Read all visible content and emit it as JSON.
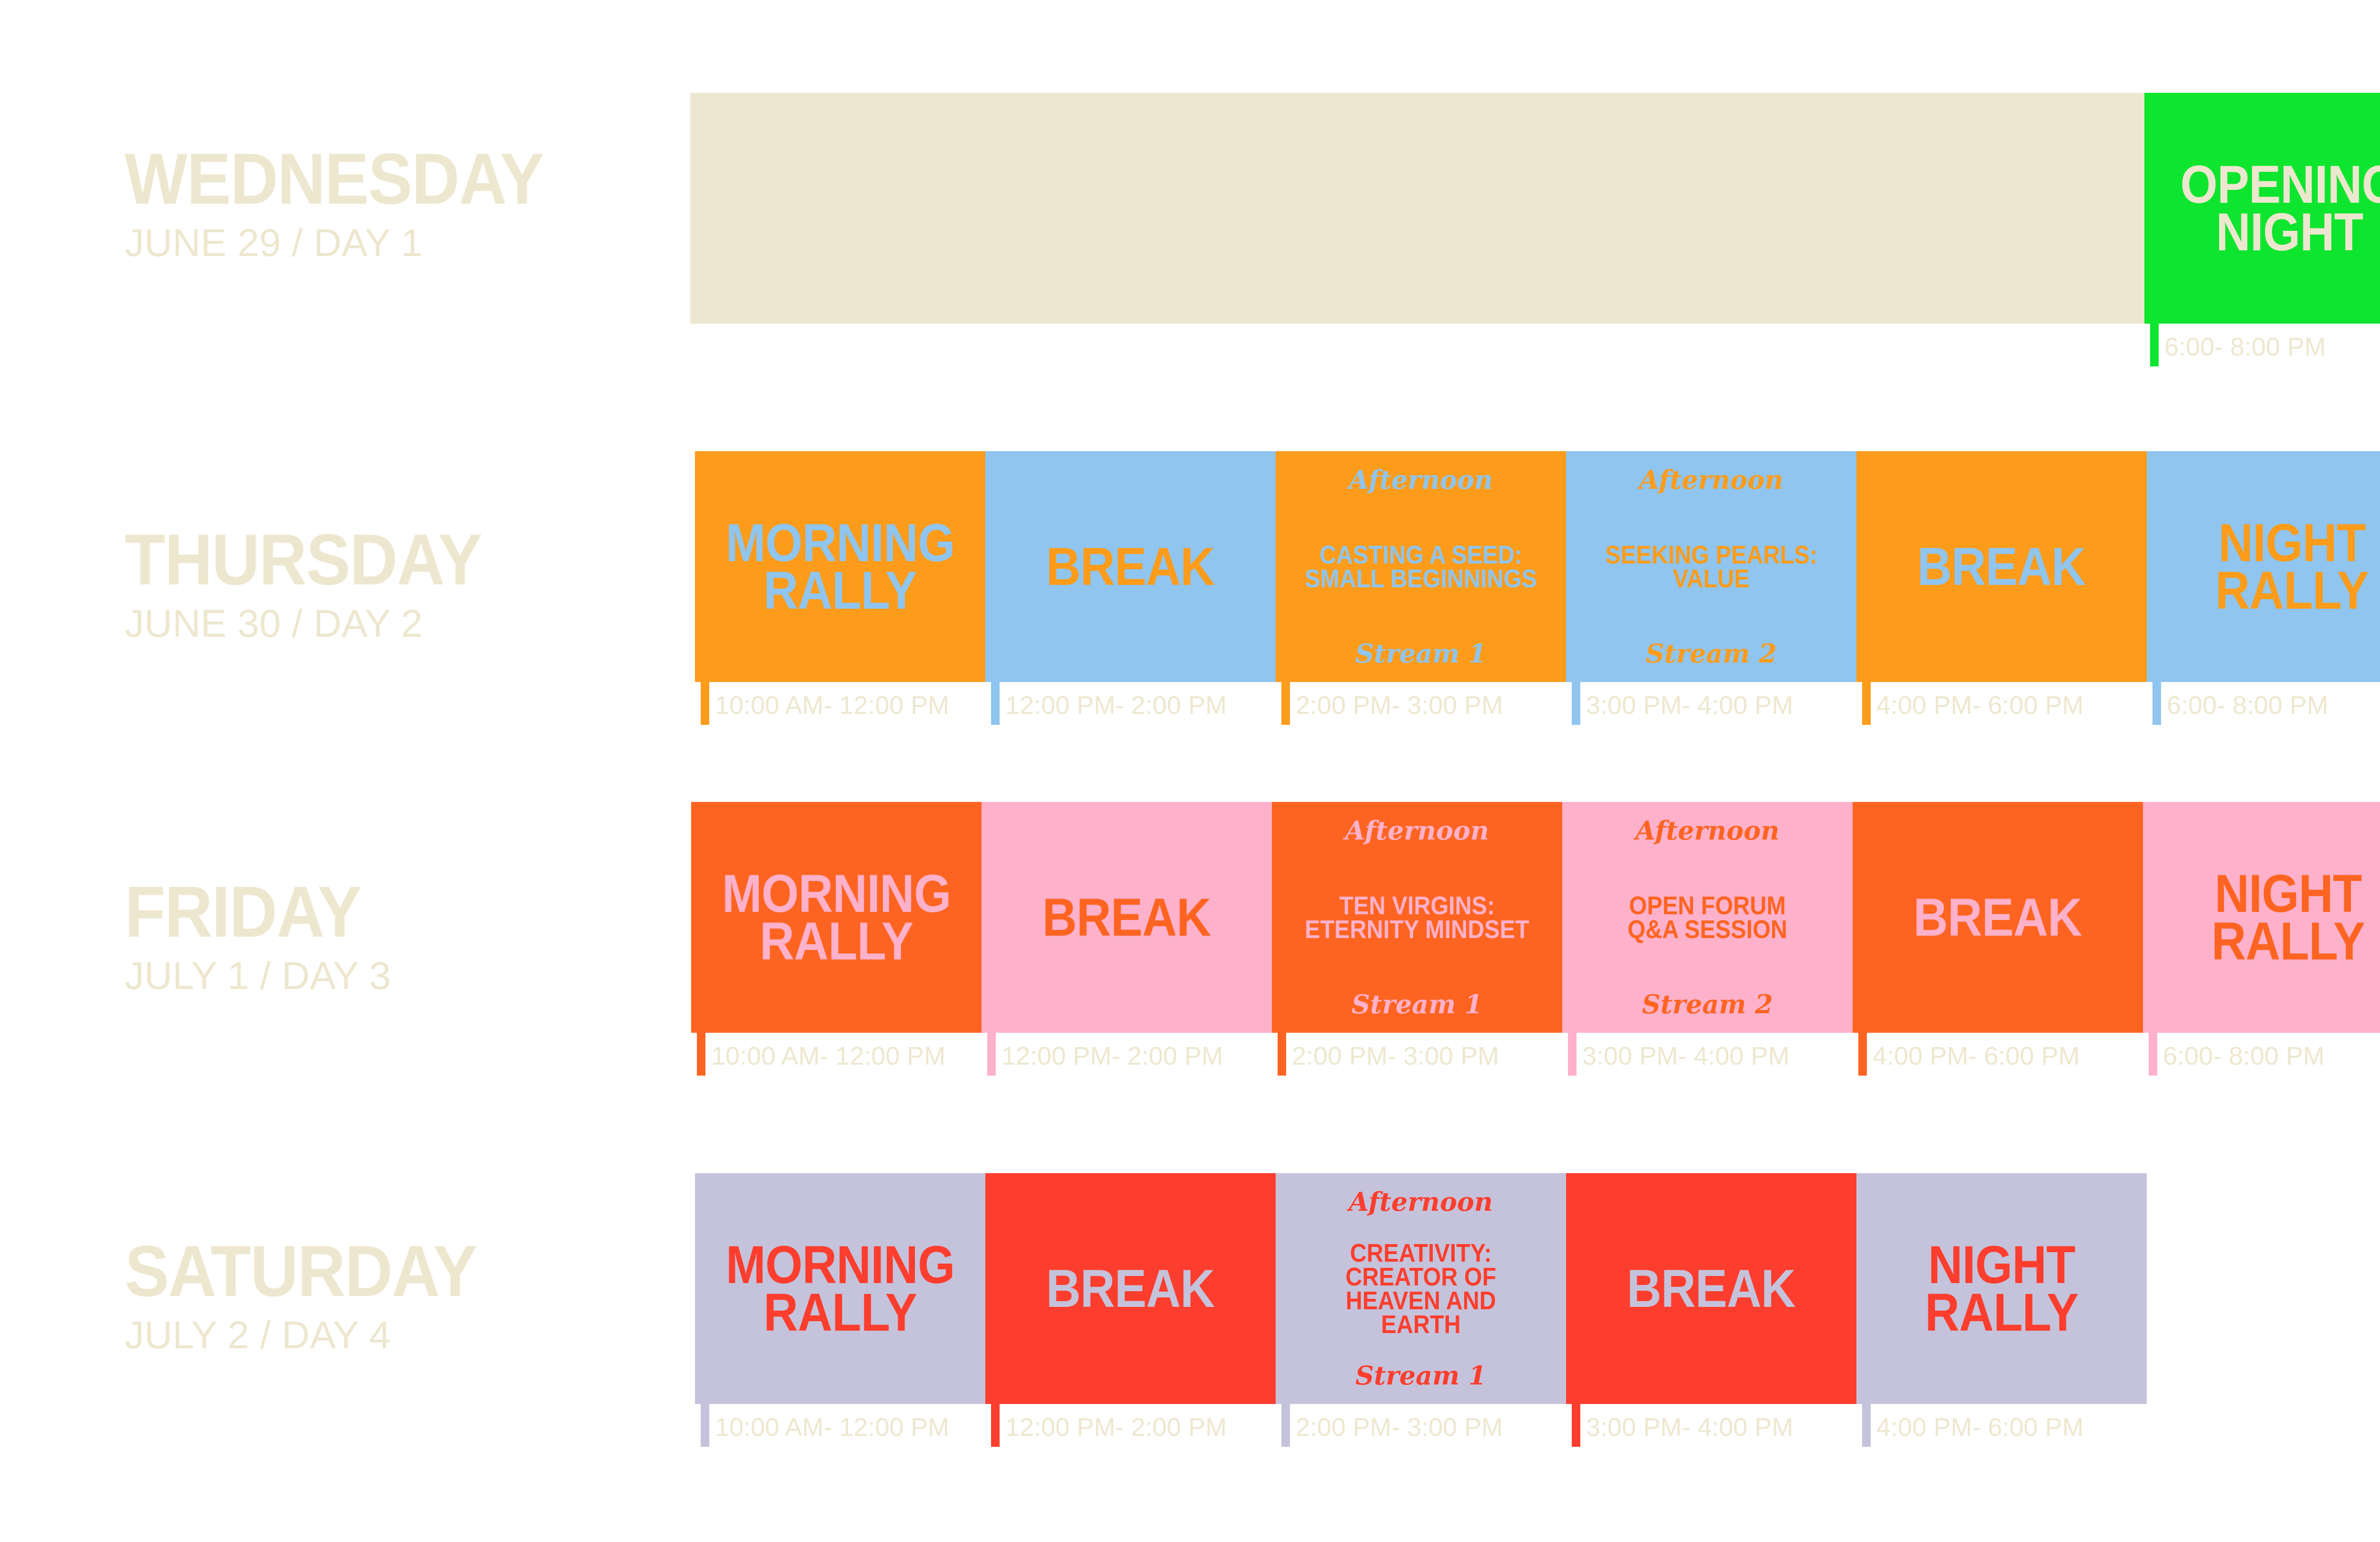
{
  "colors": {
    "label": "#eee7cf",
    "time_text": "#eee7cf",
    "cream": "#eee7cf",
    "green": "#0de52e",
    "orange": "#fd9c1b",
    "sky": "#8fc5ef",
    "deep_orange": "#fe6421",
    "pink": "#fdb1ca",
    "lavender": "#c5c3db",
    "red": "#fd3e2e"
  },
  "days": [
    {
      "name": "WEDNESDAY",
      "subtitle": "JUNE 29 / DAY 1",
      "blocks": [
        {
          "kind": "empty",
          "bg": "#eee7cf",
          "time": ""
        },
        {
          "kind": "big",
          "title": "OPENING\nNIGHT",
          "bg": "#0de52e",
          "fg": "#eee7cf",
          "time": "6:00- 8:00 PM",
          "mark": "#0de52e"
        }
      ]
    },
    {
      "name": "THURSDAY",
      "subtitle": "JUNE 30 / DAY 2",
      "blocks": [
        {
          "kind": "big",
          "title": "MORNING\nRALLY",
          "bg": "#fd9c1b",
          "fg": "#8fc5ef",
          "time": "10:00 AM- 12:00 PM",
          "mark": "#fd9c1b"
        },
        {
          "kind": "big",
          "title": "BREAK",
          "bg": "#8fc5ef",
          "fg": "#fd9c1b",
          "time": "12:00 PM- 2:00 PM",
          "mark": "#8fc5ef"
        },
        {
          "kind": "session",
          "kicker": "Afternoon",
          "title": "CASTING A SEED:\nSMALL BEGINNINGS",
          "stream": "Stream 1",
          "bg": "#fd9c1b",
          "fg": "#8fc5ef",
          "time": "2:00 PM- 3:00 PM",
          "mark": "#fd9c1b"
        },
        {
          "kind": "session",
          "kicker": "Afternoon",
          "title": "SEEKING PEARLS:\nVALUE",
          "stream": "Stream 2",
          "bg": "#8fc5ef",
          "fg": "#fd9c1b",
          "time": "3:00 PM- 4:00 PM",
          "mark": "#8fc5ef"
        },
        {
          "kind": "big",
          "title": "BREAK",
          "bg": "#fd9c1b",
          "fg": "#8fc5ef",
          "time": "4:00 PM- 6:00 PM",
          "mark": "#fd9c1b"
        },
        {
          "kind": "big",
          "title": "NIGHT\nRALLY",
          "bg": "#8fc5ef",
          "fg": "#fd9c1b",
          "time": "6:00- 8:00 PM",
          "mark": "#8fc5ef"
        }
      ]
    },
    {
      "name": "FRIDAY",
      "subtitle": "JULY 1 / DAY 3",
      "blocks": [
        {
          "kind": "big",
          "title": "MORNING\nRALLY",
          "bg": "#fe6421",
          "fg": "#fdb1ca",
          "time": "10:00 AM- 12:00 PM",
          "mark": "#fe6421"
        },
        {
          "kind": "big",
          "title": "BREAK",
          "bg": "#fdb1ca",
          "fg": "#fe6421",
          "time": "12:00 PM- 2:00 PM",
          "mark": "#fdb1ca"
        },
        {
          "kind": "session",
          "kicker": "Afternoon",
          "title": "TEN VIRGINS:\nETERNITY MINDSET",
          "stream": "Stream 1",
          "bg": "#fe6421",
          "fg": "#fdb1ca",
          "time": "2:00 PM- 3:00 PM",
          "mark": "#fe6421"
        },
        {
          "kind": "session",
          "kicker": "Afternoon",
          "title": "OPEN FORUM\nQ&A SESSION",
          "stream": "Stream 2",
          "bg": "#fdb1ca",
          "fg": "#fe6421",
          "time": "3:00 PM- 4:00 PM",
          "mark": "#fdb1ca"
        },
        {
          "kind": "big",
          "title": "BREAK",
          "bg": "#fe6421",
          "fg": "#fdb1ca",
          "time": "4:00 PM- 6:00 PM",
          "mark": "#fe6421"
        },
        {
          "kind": "big",
          "title": "NIGHT\nRALLY",
          "bg": "#fdb1ca",
          "fg": "#fe6421",
          "time": "6:00- 8:00 PM",
          "mark": "#fdb1ca"
        }
      ]
    },
    {
      "name": "SATURDAY",
      "subtitle": "JULY 2 / DAY 4",
      "blocks": [
        {
          "kind": "big",
          "title": "MORNING\nRALLY",
          "bg": "#c5c3db",
          "fg": "#fd3e2e",
          "time": "10:00 AM- 12:00 PM",
          "mark": "#c5c3db"
        },
        {
          "kind": "big",
          "title": "BREAK",
          "bg": "#fd3e2e",
          "fg": "#c5c3db",
          "time": "12:00 PM- 2:00 PM",
          "mark": "#fd3e2e"
        },
        {
          "kind": "session",
          "kicker": "Afternoon",
          "title": "CREATIVITY:\nCREATOR OF\nHEAVEN AND\nEARTH",
          "stream": "Stream 1",
          "bg": "#c5c3db",
          "fg": "#fd3e2e",
          "time": "2:00 PM- 3:00 PM",
          "mark": "#c5c3db"
        },
        {
          "kind": "big",
          "title": "BREAK",
          "bg": "#fd3e2e",
          "fg": "#c5c3db",
          "time": "3:00 PM- 4:00 PM",
          "mark": "#fd3e2e"
        },
        {
          "kind": "big",
          "title": "NIGHT\nRALLY",
          "bg": "#c5c3db",
          "fg": "#fd3e2e",
          "time": "4:00 PM- 6:00 PM",
          "mark": "#c5c3db"
        }
      ]
    }
  ]
}
